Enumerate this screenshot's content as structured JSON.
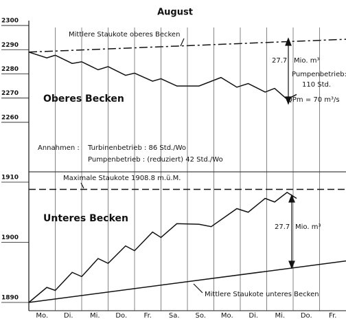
{
  "chart_data": [
    {
      "type": "line",
      "title": "Oberes Becken",
      "top_title": "August",
      "ylim": [
        2256,
        2302
      ],
      "yticks": [
        2260,
        2270,
        2280,
        2290,
        2300
      ],
      "xlim": [
        0,
        12
      ],
      "series": [
        {
          "name": "Mittlere Staukote oberes Becken",
          "color": "#111",
          "style": "dashdot",
          "x": [
            0,
            12
          ],
          "values": [
            2289,
            2294.3
          ]
        },
        {
          "color": "#111",
          "style": "solid",
          "x": [
            0,
            0.68,
            1,
            1.64,
            2,
            2.62,
            3,
            3.66,
            4,
            4.68,
            5,
            5.6,
            6.44,
            7.27,
            7.87,
            8.3,
            8.94,
            9.3,
            9.77,
            10.13
          ],
          "values": [
            2289,
            2286.6,
            2287.7,
            2284.3,
            2285,
            2281.7,
            2283,
            2279.4,
            2280.3,
            2277,
            2278,
            2275,
            2275,
            2278.5,
            2274.5,
            2276,
            2272.5,
            2274,
            2269.5,
            2271.5
          ]
        }
      ],
      "annotations": [
        "27.7",
        "Mio. m³",
        "Pumpenbetrieb:",
        "110 Std.",
        "QPm = 70 m³/s",
        "Annahmen :",
        "Turbinenbetrieb : 86 Std./Wo",
        "Pumpenbetrieb : (reduziert) 42 Std./Wo"
      ]
    },
    {
      "type": "line",
      "title": "Unteres Becken",
      "ylim": [
        1889,
        1912
      ],
      "yticks": [
        1890,
        1900,
        1910
      ],
      "xlim": [
        0,
        12
      ],
      "categories": [
        "Mo.",
        "Di.",
        "Mi.",
        "Do.",
        "Fr.",
        "Sa.",
        "So.",
        "Mo.",
        "Di.",
        "Mi.",
        "Do.",
        "Fr."
      ],
      "series": [
        {
          "name": "Maximale Staukote 1908.8 m.ü.M.",
          "color": "#111",
          "style": "dashed",
          "x": [
            0,
            12
          ],
          "values": [
            1908.8,
            1908.8
          ]
        },
        {
          "name": "Mittlere Staukote unteres Becken",
          "color": "#111",
          "style": "solid",
          "x": [
            0,
            12
          ],
          "values": [
            1890,
            1896.9
          ]
        },
        {
          "color": "#111",
          "style": "solid",
          "x": [
            0,
            0.68,
            1,
            1.64,
            2,
            2.62,
            3,
            3.66,
            4,
            4.68,
            5,
            5.6,
            6.44,
            6.9,
            7.87,
            8.3,
            8.94,
            9.3,
            9.77,
            10.13
          ],
          "values": [
            1890,
            1892.5,
            1892,
            1895,
            1894.3,
            1897.3,
            1896.5,
            1899.4,
            1898.6,
            1901.7,
            1900.8,
            1903.1,
            1903,
            1902.6,
            1905.6,
            1905,
            1907.3,
            1906.7,
            1908.3,
            1907.3
          ]
        }
      ],
      "annotations": [
        "27.7",
        "Mio. m³"
      ]
    }
  ]
}
